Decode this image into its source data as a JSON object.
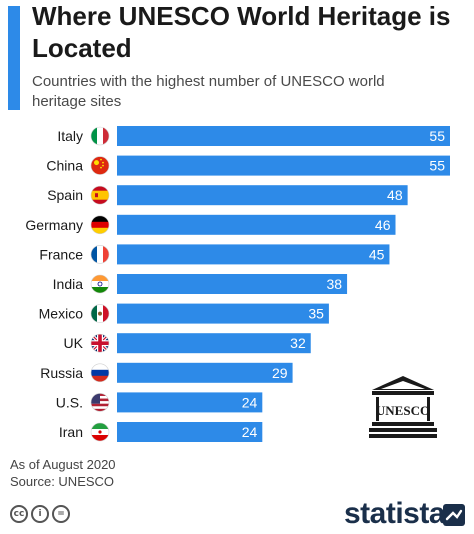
{
  "header": {
    "title": "Where UNESCO World Heritage is Located",
    "subtitle": "Countries with the highest number of UNESCO world heritage sites"
  },
  "footer": {
    "as_of": "As of August 2020",
    "source": "Source: UNESCO",
    "brand": "statista",
    "license_icons": [
      "cc-icon",
      "by-icon",
      "nd-icon"
    ]
  },
  "logo": {
    "unesco_text": "UNESCO"
  },
  "colors": {
    "accent": "#2d8ae8",
    "bar": "#2d8ae8",
    "bar_label": "#ffffff"
  },
  "chart_data": {
    "type": "bar",
    "orientation": "horizontal",
    "categories": [
      "Italy",
      "China",
      "Spain",
      "Germany",
      "France",
      "India",
      "Mexico",
      "UK",
      "Russia",
      "U.S.",
      "Iran"
    ],
    "values": [
      55,
      55,
      48,
      46,
      45,
      38,
      35,
      32,
      29,
      24,
      24
    ],
    "xlim": [
      0,
      55
    ],
    "grid": false,
    "data_labels": true,
    "flag_icons": [
      "flag-italy-icon",
      "flag-china-icon",
      "flag-spain-icon",
      "flag-germany-icon",
      "flag-france-icon",
      "flag-india-icon",
      "flag-mexico-icon",
      "flag-uk-icon",
      "flag-russia-icon",
      "flag-us-icon",
      "flag-iran-icon"
    ]
  }
}
